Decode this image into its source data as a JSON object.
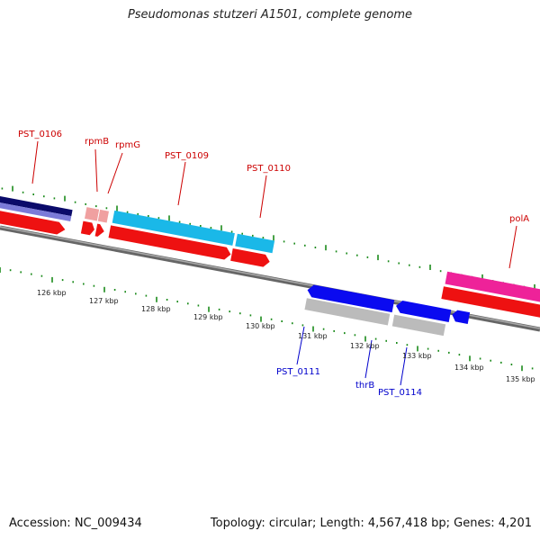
{
  "title": "Pseudomonas stutzeri A1501, complete genome",
  "accession": "Accession: NC_009434",
  "topology_summary": "Topology: circular; Length: 4,567,418 bp; Genes: 4,201",
  "ruler": {
    "tick_color": "#1a8a1a",
    "labels": [
      "126 kbp",
      "127 kbp",
      "128 kbp",
      "129 kbp",
      "130 kbp",
      "131 kbp",
      "132 kbp",
      "133 kbp",
      "134 kbp",
      "135 kbp"
    ]
  },
  "genes_top": [
    {
      "name": "PST_0106",
      "color": "#cc0000"
    },
    {
      "name": "rpmB",
      "color": "#cc0000"
    },
    {
      "name": "rpmG",
      "color": "#cc0000"
    },
    {
      "name": "PST_0109",
      "color": "#cc0000"
    },
    {
      "name": "PST_0110",
      "color": "#cc0000"
    },
    {
      "name": "polA",
      "color": "#cc0000"
    }
  ],
  "genes_bottom": [
    {
      "name": "PST_0111",
      "color": "#0000cc"
    },
    {
      "name": "thrB",
      "color": "#0000cc"
    },
    {
      "name": "PST_0114",
      "color": "#0000cc"
    }
  ],
  "colors": {
    "backbone": "#888888",
    "cds_red": "#ee1111",
    "forward_blue": "#0a0af0",
    "grey": "#bbbbbb",
    "cyan": "#1ab8e8",
    "pink": "#f0a0a0",
    "magenta": "#ee2299",
    "navy": "#0a0a6a",
    "lavender": "#7a7ad8"
  }
}
